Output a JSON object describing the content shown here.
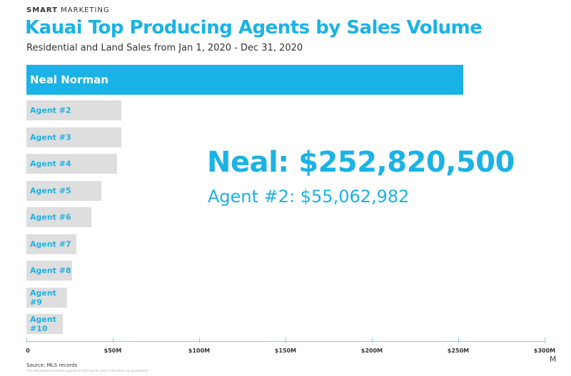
{
  "header": {
    "brand_bold": "SMART",
    "brand_rest": "MARKETING",
    "title": "Kauai Top Producing Agents by Sales Volume",
    "subtitle": "Residential and Land Sales from Jan 1, 2020 - Dec 31, 2020"
  },
  "chart_data": {
    "type": "bar",
    "orientation": "horizontal",
    "title": "Kauai Top Producing Agents by Sales Volume",
    "categories": [
      "Neal Norman",
      "Agent #2",
      "Agent #3",
      "Agent #4",
      "Agent #5",
      "Agent #6",
      "Agent #7",
      "Agent #8",
      "Agent #9",
      "Agent #10"
    ],
    "values": [
      252.8205,
      55.06,
      54.8,
      52.5,
      43.4,
      37.6,
      28.9,
      26.4,
      23.6,
      21.0
    ],
    "unit": "M",
    "xlim": [
      0,
      300
    ],
    "tick_values": [
      0,
      50,
      100,
      150,
      200,
      250,
      300
    ],
    "tick_labels": [
      "0",
      "$50M",
      "$100M",
      "$150M",
      "$200M",
      "$250M",
      "$300M"
    ],
    "highlight_color": "#1ab3e6",
    "bar_color": "#dedede",
    "annotations": [
      "Neal: $252,820,500",
      "Agent #2: $55,062,982"
    ]
  },
  "footer": {
    "source": "Source: MLS records",
    "disclaimer": "This information has been supplied by third parties and is, therefore, not guaranteed."
  }
}
